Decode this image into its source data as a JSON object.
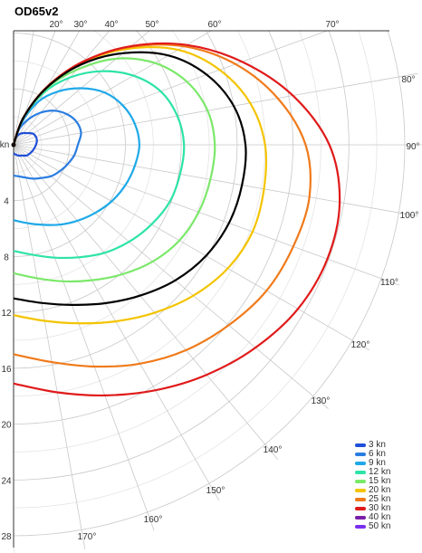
{
  "chart_data": {
    "type": "line",
    "title": "OD65v2",
    "projection": "polar",
    "angular_axis": {
      "unit": "°",
      "direction": "clockwise",
      "zero": "up",
      "range": [
        0,
        180
      ],
      "tick_labels": [
        "20°",
        "30°",
        "40°",
        "50°",
        "60°",
        "70°",
        "80°",
        "90°",
        "100°",
        "110°",
        "120°",
        "130°",
        "140°",
        "150°",
        "160°",
        "170°"
      ]
    },
    "radial_axis": {
      "label": "kn",
      "range": [
        0,
        28
      ],
      "tick_labels": [
        "4",
        "8",
        "12",
        "16",
        "20",
        "24",
        "28"
      ]
    },
    "grid": true,
    "legend_position": "bottom-right",
    "angles": [
      20,
      30,
      40,
      50,
      60,
      70,
      80,
      90,
      100,
      110,
      120,
      130,
      140,
      150,
      160,
      170,
      180
    ],
    "series": [
      {
        "name": "3 kn",
        "color": "#1f4fd8",
        "values": [
          0.6,
          0.9,
          1.1,
          1.3,
          1.6,
          1.7,
          1.7,
          1.6,
          1.5,
          1.4,
          1.3,
          1.2,
          1.0,
          0.9,
          0.8,
          0.7,
          0.6
        ]
      },
      {
        "name": "6 kn",
        "color": "#2a7de1",
        "values": [
          1.2,
          2.1,
          3.0,
          3.8,
          4.4,
          4.8,
          4.9,
          4.6,
          4.4,
          4.1,
          3.8,
          3.5,
          3.1,
          2.8,
          2.5,
          2.3,
          2.2
        ]
      },
      {
        "name": "9 kn",
        "color": "#1fa9e8",
        "values": [
          1.7,
          3.6,
          5.0,
          6.3,
          7.5,
          8.3,
          8.8,
          9.0,
          8.8,
          8.5,
          8.1,
          7.6,
          7.1,
          6.6,
          6.1,
          5.7,
          5.4
        ]
      },
      {
        "name": "12 kn",
        "color": "#2de3a8",
        "values": [
          2.0,
          4.3,
          6.3,
          8.2,
          9.9,
          11.2,
          11.9,
          12.2,
          12.1,
          11.9,
          11.4,
          10.8,
          10.1,
          9.3,
          8.6,
          8.0,
          7.6
        ]
      },
      {
        "name": "15 kn",
        "color": "#7be86a",
        "values": [
          2.1,
          4.6,
          7.0,
          9.6,
          11.7,
          13.2,
          14.1,
          14.4,
          14.3,
          14.1,
          13.7,
          13.0,
          12.1,
          11.2,
          10.4,
          9.7,
          9.2
        ]
      },
      {
        "name": "20 kn",
        "color": "#f4c400",
        "values": [
          2.1,
          4.8,
          7.7,
          10.7,
          13.6,
          15.7,
          17.2,
          18.0,
          18.2,
          18.2,
          17.7,
          16.8,
          15.7,
          14.6,
          13.6,
          12.8,
          12.2
        ]
      },
      {
        "name": "25 kn",
        "color": "#f07a1a",
        "values": [
          2.1,
          4.8,
          7.8,
          10.9,
          14.1,
          16.9,
          19.2,
          20.9,
          21.5,
          21.3,
          20.9,
          20.1,
          19.2,
          18.1,
          16.9,
          15.8,
          15.0
        ]
      },
      {
        "name": "30 kn",
        "color": "#e01a1a",
        "values": [
          2.1,
          4.8,
          7.8,
          11.0,
          14.3,
          17.4,
          20.3,
          22.6,
          23.7,
          23.9,
          23.5,
          22.6,
          21.5,
          20.3,
          19.1,
          18.0,
          17.1
        ]
      },
      {
        "name": "40 kn",
        "color": "#7a1fa8",
        "values": []
      },
      {
        "name": "50 kn",
        "color": "#7b2df0",
        "values": []
      },
      {
        "name": "",
        "color": "#000000",
        "values": [
          2.1,
          4.7,
          7.5,
          10.2,
          12.8,
          14.7,
          16.0,
          16.6,
          16.6,
          16.4,
          15.9,
          15.1,
          14.1,
          13.1,
          12.2,
          11.5,
          11.0
        ]
      }
    ]
  }
}
